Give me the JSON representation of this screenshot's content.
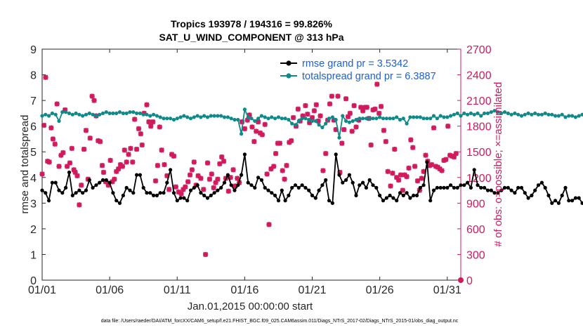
{
  "chart_data": {
    "type": "line",
    "title": "Tropics 193978 / 194316 = 99.826%",
    "subtitle": "SAT_U_WIND_COMPONENT @ 313 hPa",
    "xlabel": "Jan.01,2015 00:00:00 start",
    "ylabel": "rmse and totalspread",
    "y2label": "# of obs: o=possible; ×=assimilated",
    "footnote": "data file: /Users/raeder/DAI/ATM_forcXX/CAM6_setup/f.e21.FHIST_BGC.f09_025.CAM6assim.011/Diags_NTrS_2017-02/Diags_NTrS_2015-01/obs_diag_output.nc",
    "xlim": [
      1,
      32
    ],
    "ylim": [
      0,
      9
    ],
    "y2lim": [
      0,
      2700
    ],
    "xticks": [
      1,
      6,
      11,
      16,
      21,
      26,
      31
    ],
    "xtick_labels": [
      "01/01",
      "01/06",
      "01/11",
      "01/16",
      "01/21",
      "01/26",
      "01/31"
    ],
    "yticks": [
      0,
      1,
      2,
      3,
      4,
      5,
      6,
      7,
      8,
      9
    ],
    "y2ticks": [
      0,
      300,
      600,
      900,
      1200,
      1500,
      1800,
      2100,
      2400,
      2700
    ],
    "legend_position": "top-right",
    "series": [
      {
        "name": "rmse grand pr = 3.5342",
        "color": "#000000",
        "x_start": 1,
        "x_step": 0.25,
        "values": [
          3.5,
          3.4,
          3.1,
          3.8,
          3.8,
          3.5,
          3.4,
          3.6,
          4.2,
          3.3,
          3.4,
          3.5,
          3.4,
          3.5,
          3.9,
          3.6,
          3.7,
          3.8,
          3.9,
          3.9,
          3.8,
          3.4,
          3.1,
          3.0,
          3.3,
          3.6,
          3.5,
          3.4,
          4.1,
          4.1,
          3.6,
          3.4,
          3.4,
          3.3,
          3.3,
          3.4,
          3.4,
          3.8,
          4.3,
          3.4,
          3.1,
          3.2,
          3.2,
          3.1,
          3.5,
          3.6,
          3.7,
          3.4,
          3.3,
          3.2,
          3.3,
          3.4,
          3.5,
          3.6,
          3.8,
          4.1,
          3.7,
          3.5,
          3.7,
          4.1,
          4.9,
          3.8,
          3.7,
          3.6,
          4.0,
          3.9,
          3.6,
          3.5,
          3.4,
          3.3,
          3.1,
          3.5,
          3.1,
          3.3,
          3.6,
          3.7,
          3.6,
          3.7,
          3.6,
          3.5,
          3.3,
          3.2,
          3.5,
          3.7,
          3.9,
          3.1,
          3.0,
          4.9,
          4.1,
          3.8,
          3.9,
          4.1,
          3.8,
          3.3,
          3.7,
          3.8,
          3.6,
          3.9,
          3.7,
          3.6,
          3.3,
          3.1,
          3.2,
          3.3,
          3.2,
          3.1,
          3.4,
          3.3,
          3.4,
          3.2,
          3.3,
          3.3,
          3.6,
          3.7,
          4.6,
          3.1,
          3.5,
          3.6,
          3.6,
          3.6,
          3.6,
          3.7,
          3.6,
          3.6,
          3.7,
          3.7,
          3.8,
          3.6,
          4.3,
          3.7,
          3.6,
          3.6,
          3.5,
          3.5,
          3.4,
          3.4,
          3.5,
          3.6,
          3.6,
          3.5,
          3.4,
          3.6,
          3.6,
          3.4,
          3.2,
          3.3,
          3.5,
          3.7,
          3.8,
          3.6,
          3.3,
          3.0,
          3.1,
          3.0,
          3.3,
          3.6,
          3.1,
          3.1,
          3.2,
          3.2,
          3.0
        ]
      },
      {
        "name": "totalspread grand pr = 6.3887",
        "color": "#0f8a8a",
        "x_start": 1,
        "x_step": 0.25,
        "values": [
          6.4,
          6.45,
          6.4,
          6.5,
          6.45,
          6.2,
          6.55,
          6.55,
          6.5,
          6.45,
          6.5,
          6.45,
          6.4,
          6.45,
          6.5,
          6.45,
          6.4,
          6.45,
          6.5,
          6.55,
          6.5,
          6.5,
          6.5,
          6.55,
          6.5,
          6.5,
          6.55,
          6.55,
          6.5,
          6.5,
          6.45,
          6.45,
          6.4,
          6.45,
          6.4,
          6.35,
          6.3,
          6.3,
          6.3,
          6.25,
          6.3,
          6.35,
          6.4,
          6.35,
          6.3,
          6.35,
          6.4,
          6.35,
          6.4,
          6.35,
          6.4,
          6.4,
          6.4,
          6.4,
          6.35,
          6.35,
          6.3,
          6.25,
          6.25,
          5.7,
          6.65,
          6.35,
          6.3,
          6.2,
          6.3,
          6.4,
          6.35,
          6.3,
          6.35,
          6.3,
          6.35,
          6.3,
          6.3,
          6.25,
          6.1,
          6.05,
          6.2,
          6.3,
          6.3,
          6.25,
          6.2,
          6.2,
          6.05,
          5.95,
          6.1,
          6.3,
          6.35,
          6.25,
          5.55,
          6.4,
          6.2,
          6.15,
          6.2,
          6.25,
          6.3,
          6.3,
          6.3,
          6.3,
          6.3,
          6.3,
          6.35,
          6.3,
          6.3,
          6.3,
          6.3,
          6.35,
          6.25,
          6.3,
          6.1,
          6.35,
          6.35,
          6.35,
          6.35,
          6.3,
          6.3,
          6.3,
          6.4,
          6.3,
          6.4,
          6.35,
          6.35,
          6.4,
          6.45,
          6.5,
          6.4,
          6.5,
          6.45,
          6.5,
          6.45,
          6.5,
          6.4,
          6.5,
          6.5,
          6.55,
          6.6,
          6.55,
          6.5,
          6.55,
          6.5,
          6.45,
          6.5,
          6.45,
          6.4,
          6.45,
          6.5,
          6.45,
          6.5,
          6.45,
          6.45,
          6.5,
          6.45,
          6.45,
          6.4,
          6.4,
          6.45,
          6.35,
          6.4,
          6.4,
          6.35,
          6.4,
          6.45
        ]
      }
    ],
    "obs_series": {
      "name": "# of obs assimilated",
      "color": "#d11a5e",
      "points": [
        [
          1.0,
          1240
        ],
        [
          1.13,
          1810
        ],
        [
          1.26,
          2370
        ],
        [
          1.4,
          1390
        ],
        [
          1.53,
          1380
        ],
        [
          1.67,
          1780
        ],
        [
          1.8,
          1650
        ],
        [
          1.95,
          1590
        ],
        [
          2.1,
          2060
        ],
        [
          2.25,
          1330
        ],
        [
          2.4,
          1460
        ],
        [
          2.55,
          1490
        ],
        [
          2.7,
          1990
        ],
        [
          2.85,
          1330
        ],
        [
          3.05,
          1370
        ],
        [
          3.2,
          1540
        ],
        [
          3.35,
          1290
        ],
        [
          3.45,
          1260
        ],
        [
          3.6,
          1220
        ],
        [
          3.75,
          880
        ],
        [
          3.9,
          1110
        ],
        [
          4.1,
          1530
        ],
        [
          4.25,
          1750
        ],
        [
          4.4,
          1180
        ],
        [
          4.55,
          1660
        ],
        [
          4.7,
          2150
        ],
        [
          4.85,
          2100
        ],
        [
          5.0,
          1920
        ],
        [
          5.15,
          1630
        ],
        [
          5.3,
          1620
        ],
        [
          5.45,
          1340
        ],
        [
          5.55,
          1260
        ],
        [
          5.7,
          1150
        ],
        [
          5.9,
          1110
        ],
        [
          6.05,
          1400
        ],
        [
          6.2,
          1150
        ],
        [
          6.35,
          1180
        ],
        [
          6.5,
          1270
        ],
        [
          6.65,
          1300
        ],
        [
          6.8,
          1350
        ],
        [
          6.95,
          1330
        ],
        [
          7.1,
          1520
        ],
        [
          7.25,
          1380
        ],
        [
          7.4,
          1470
        ],
        [
          7.55,
          1540
        ],
        [
          7.7,
          1380
        ],
        [
          7.85,
          1880
        ],
        [
          8.0,
          1530
        ],
        [
          8.15,
          1770
        ],
        [
          8.3,
          1710
        ],
        [
          8.4,
          1580
        ],
        [
          8.55,
          1950
        ],
        [
          8.75,
          2050
        ],
        [
          8.9,
          1850
        ],
        [
          9.05,
          1800
        ],
        [
          9.2,
          1850
        ],
        [
          9.4,
          1160
        ],
        [
          9.55,
          1340
        ],
        [
          9.7,
          1790
        ],
        [
          9.85,
          1520
        ],
        [
          10.05,
          1350
        ],
        [
          10.25,
          1220
        ],
        [
          10.4,
          1060
        ],
        [
          10.6,
          1470
        ],
        [
          10.75,
          1450
        ],
        [
          10.9,
          1090
        ],
        [
          11.1,
          1030
        ],
        [
          11.3,
          1010
        ],
        [
          11.45,
          1060
        ],
        [
          11.6,
          1090
        ],
        [
          11.8,
          1150
        ],
        [
          11.95,
          1230
        ],
        [
          12.1,
          1290
        ],
        [
          12.25,
          1380
        ],
        [
          12.4,
          1110
        ],
        [
          12.55,
          1220
        ],
        [
          12.75,
          1190
        ],
        [
          12.95,
          1060
        ],
        [
          13.1,
          300
        ],
        [
          13.25,
          1370
        ],
        [
          13.4,
          1180
        ],
        [
          13.55,
          1240
        ],
        [
          13.7,
          1080
        ],
        [
          13.85,
          1140
        ],
        [
          14.0,
          1180
        ],
        [
          14.15,
          1360
        ],
        [
          14.3,
          1440
        ],
        [
          14.45,
          1390
        ],
        [
          14.6,
          1190
        ],
        [
          14.8,
          1040
        ],
        [
          14.95,
          1200
        ],
        [
          15.15,
          1290
        ],
        [
          15.3,
          1100
        ],
        [
          15.45,
          1190
        ],
        [
          15.6,
          1140
        ],
        [
          15.8,
          1850
        ],
        [
          16.0,
          1770
        ],
        [
          16.2,
          1870
        ],
        [
          16.35,
          1930
        ],
        [
          16.55,
          1790
        ],
        [
          16.7,
          1620
        ],
        [
          16.85,
          1740
        ],
        [
          17.0,
          1850
        ],
        [
          17.15,
          1720
        ],
        [
          17.3,
          1700
        ],
        [
          17.5,
          1820
        ],
        [
          17.65,
          1240
        ],
        [
          17.8,
          650
        ],
        [
          17.95,
          1300
        ],
        [
          18.15,
          1330
        ],
        [
          18.3,
          1480
        ],
        [
          18.45,
          1600
        ],
        [
          18.6,
          1600
        ],
        [
          18.8,
          1280
        ],
        [
          18.95,
          1180
        ],
        [
          19.1,
          1340
        ],
        [
          19.3,
          1610
        ],
        [
          19.45,
          1630
        ],
        [
          19.6,
          1900
        ],
        [
          19.8,
          1800
        ],
        [
          19.95,
          2000
        ],
        [
          20.1,
          1860
        ],
        [
          20.3,
          1920
        ],
        [
          20.5,
          2040
        ],
        [
          20.65,
          1940
        ],
        [
          20.8,
          1840
        ],
        [
          21.0,
          1900
        ],
        [
          21.15,
          1980
        ],
        [
          21.3,
          2050
        ],
        [
          21.45,
          1860
        ],
        [
          21.6,
          1920
        ],
        [
          21.8,
          1280
        ],
        [
          22.0,
          1480
        ],
        [
          22.15,
          1870
        ],
        [
          22.3,
          2060
        ],
        [
          22.45,
          2150
        ],
        [
          22.6,
          1870
        ],
        [
          22.75,
          1760
        ],
        [
          22.9,
          2150
        ],
        [
          23.05,
          1260
        ],
        [
          23.2,
          1600
        ],
        [
          23.35,
          1760
        ],
        [
          23.5,
          2120
        ],
        [
          23.65,
          1910
        ],
        [
          23.8,
          1950
        ],
        [
          23.95,
          1740
        ],
        [
          24.1,
          2040
        ],
        [
          24.25,
          1790
        ],
        [
          24.45,
          1870
        ],
        [
          24.6,
          2020
        ],
        [
          24.75,
          1980
        ],
        [
          24.9,
          2020
        ],
        [
          25.05,
          2020
        ],
        [
          25.2,
          1890
        ],
        [
          25.35,
          1580
        ],
        [
          25.5,
          1990
        ],
        [
          25.65,
          2000
        ],
        [
          25.8,
          2290
        ],
        [
          25.95,
          1950
        ],
        [
          26.1,
          2030
        ],
        [
          26.3,
          1750
        ],
        [
          26.45,
          1620
        ],
        [
          26.6,
          1270
        ],
        [
          26.8,
          1100
        ],
        [
          26.95,
          1250
        ],
        [
          27.1,
          1530
        ],
        [
          27.25,
          1200
        ],
        [
          27.4,
          1170
        ],
        [
          27.55,
          1230
        ],
        [
          27.7,
          1050
        ],
        [
          27.85,
          1230
        ],
        [
          28.0,
          1210
        ],
        [
          28.15,
          1310
        ],
        [
          28.3,
          1640
        ],
        [
          28.45,
          1550
        ],
        [
          28.6,
          1330
        ],
        [
          28.8,
          1160
        ],
        [
          28.95,
          1050
        ],
        [
          29.1,
          1190
        ],
        [
          29.25,
          1270
        ],
        [
          29.4,
          1460
        ],
        [
          29.55,
          1390
        ],
        [
          29.7,
          1340
        ],
        [
          29.85,
          1350
        ],
        [
          30.0,
          1780
        ],
        [
          30.15,
          1330
        ],
        [
          30.3,
          1320
        ],
        [
          30.45,
          1300
        ],
        [
          30.6,
          1280
        ],
        [
          30.75,
          1400
        ],
        [
          30.9,
          1410
        ],
        [
          31.05,
          1800
        ],
        [
          31.2,
          1460
        ],
        [
          31.35,
          1450
        ],
        [
          31.5,
          1440
        ],
        [
          31.65,
          1480
        ]
      ]
    },
    "obs_possible_point": [
      32,
      0
    ]
  }
}
